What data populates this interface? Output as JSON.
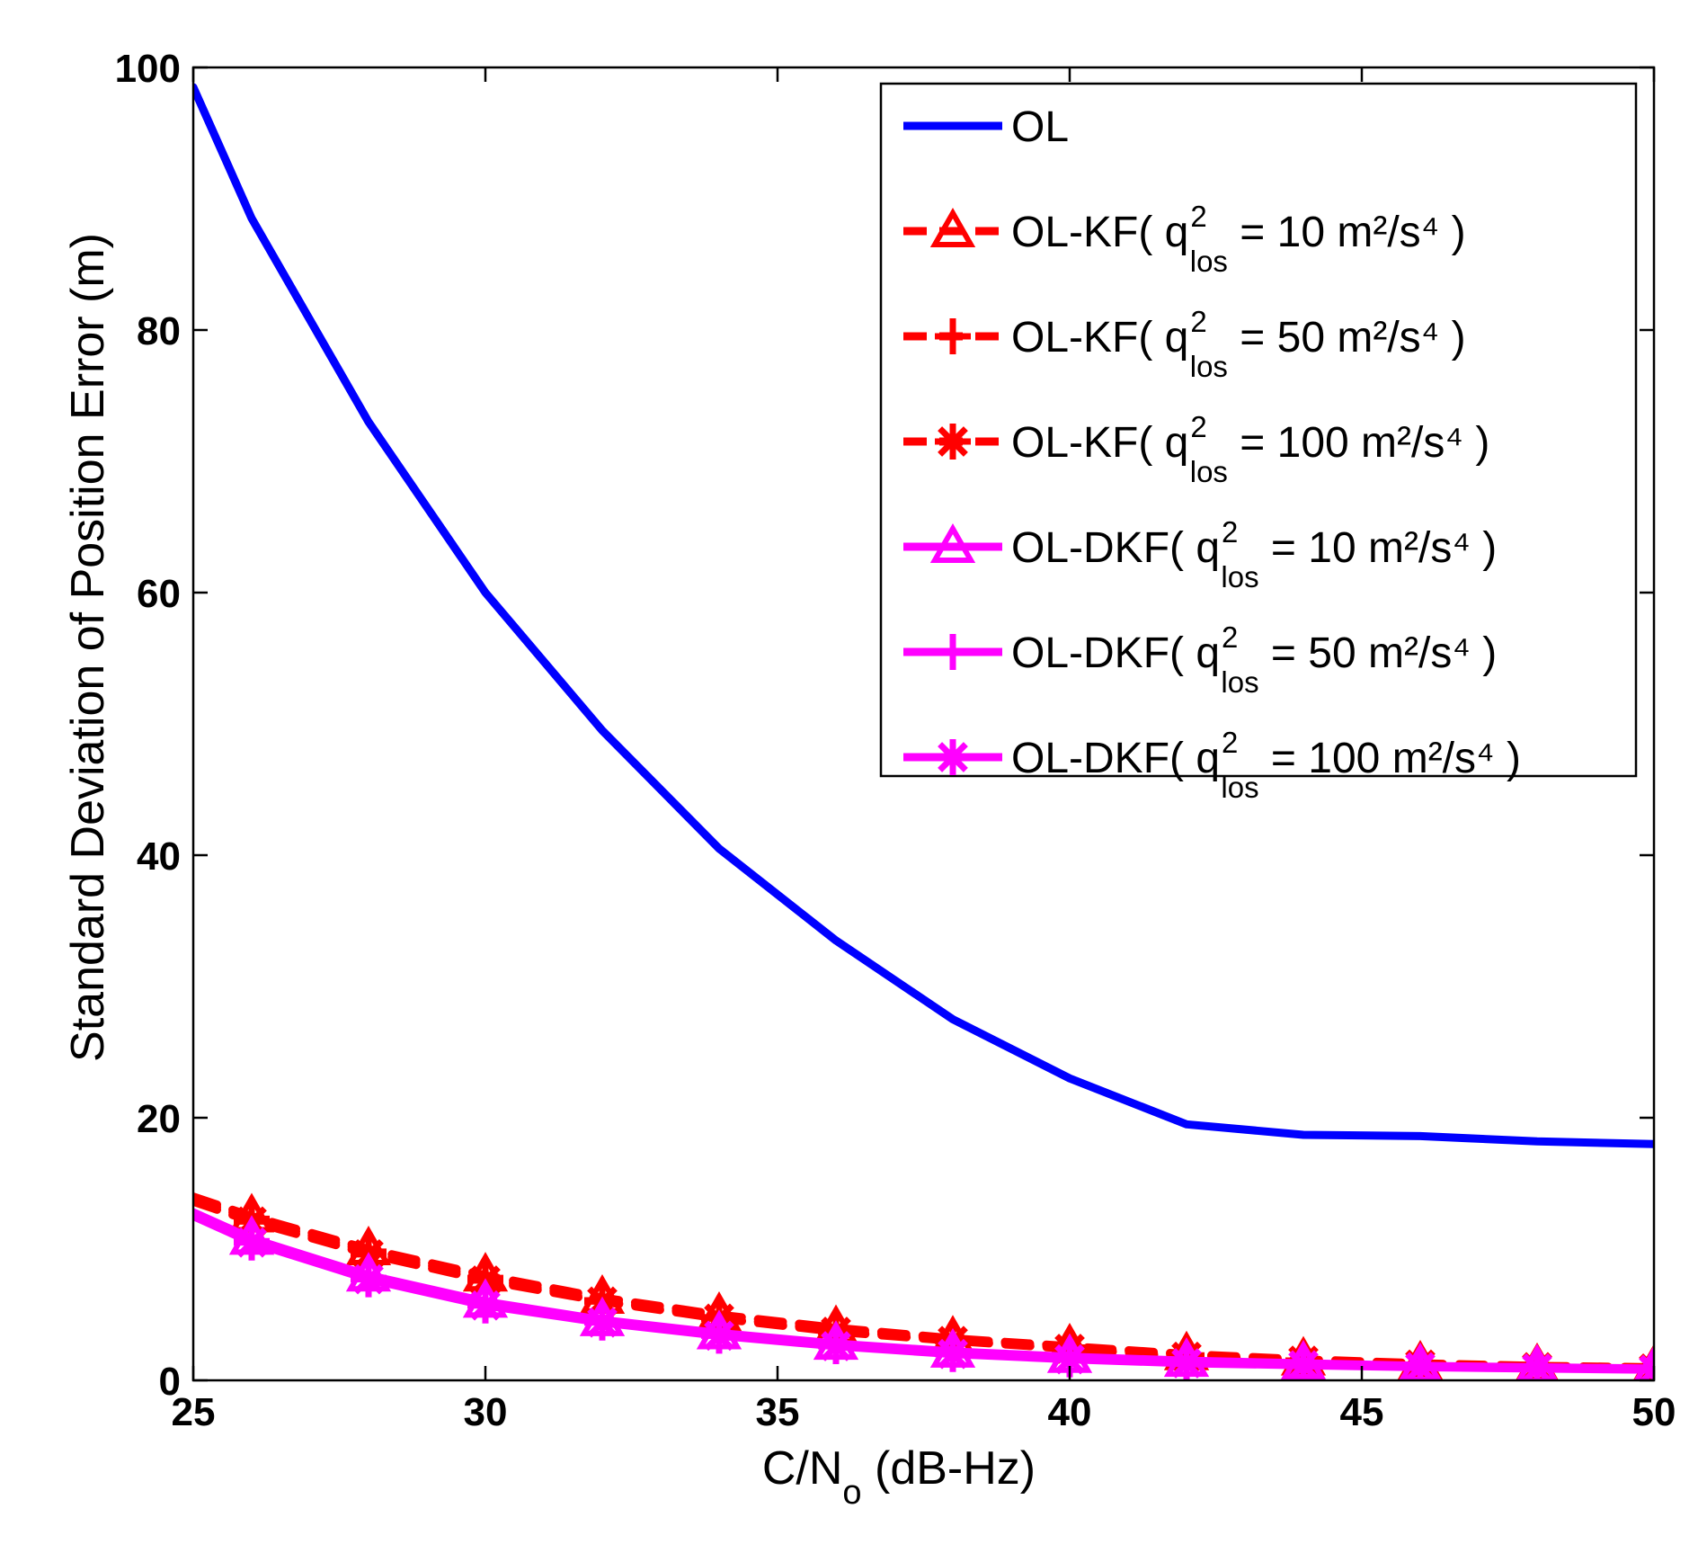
{
  "chart_data": {
    "type": "line",
    "title": "",
    "xlabel_main": "C/N",
    "xlabel_sub": "o",
    "xlabel_rest": " (dB-Hz)",
    "ylabel": "Standard Deviation of Position Error (m)",
    "xlim": [
      25,
      50
    ],
    "ylim": [
      0,
      100
    ],
    "xticks": [
      25,
      30,
      35,
      40,
      45,
      50
    ],
    "yticks": [
      0,
      20,
      40,
      60,
      80,
      100
    ],
    "xtick_labels": [
      "25",
      "30",
      "35",
      "40",
      "45",
      "50"
    ],
    "ytick_labels": [
      "0",
      "20",
      "40",
      "60",
      "80",
      "100"
    ],
    "grid": false,
    "legend_position": "top-right",
    "series": [
      {
        "name": "OL",
        "color": "#0000ff",
        "line_style": "solid",
        "marker": "none",
        "x": [
          25,
          26,
          28,
          30,
          32,
          34,
          36,
          38,
          40,
          42,
          44,
          46,
          48,
          50
        ],
        "y": [
          98.5,
          88.5,
          73,
          60,
          49.5,
          40.5,
          33.5,
          27.5,
          23,
          19.5,
          18.7,
          18.6,
          18.2,
          18
        ]
      },
      {
        "name": "OL-KF( q_los^2 = 10 m^2/s^4 )",
        "color": "#ff0000",
        "line_style": "dashed",
        "marker": "triangle",
        "x": [
          25,
          26,
          28,
          30,
          32,
          34,
          36,
          38,
          40,
          42,
          44,
          46,
          48,
          50
        ],
        "y": [
          14,
          12.5,
          10,
          8,
          6.3,
          5,
          4,
          3.2,
          2.6,
          2,
          1.6,
          1.3,
          1.1,
          1
        ]
      },
      {
        "name": "OL-KF( q_los^2 = 50 m^2/s^4 )",
        "color": "#ff0000",
        "line_style": "dashed",
        "marker": "plus",
        "x": [
          25,
          26,
          28,
          30,
          32,
          34,
          36,
          38,
          40,
          42,
          44,
          46,
          48,
          50
        ],
        "y": [
          13.8,
          12.3,
          9.8,
          7.8,
          6.1,
          4.8,
          3.8,
          3.1,
          2.5,
          1.9,
          1.5,
          1.2,
          1.05,
          0.9
        ]
      },
      {
        "name": "OL-KF( q_los^2 = 100 m^2/s^4 )",
        "color": "#ff0000",
        "line_style": "dashed",
        "marker": "star",
        "x": [
          25,
          26,
          28,
          30,
          32,
          34,
          36,
          38,
          40,
          42,
          44,
          46,
          48,
          50
        ],
        "y": [
          13.6,
          12.1,
          9.6,
          7.6,
          6,
          4.7,
          3.7,
          3,
          2.4,
          1.8,
          1.5,
          1.2,
          1,
          0.9
        ]
      },
      {
        "name": "OL-DKF( q_los^2 = 10 m^2/s^4 )",
        "color": "#ff00ff",
        "line_style": "solid",
        "marker": "triangle",
        "x": [
          25,
          26,
          28,
          30,
          32,
          34,
          36,
          38,
          40,
          42,
          44,
          46,
          48,
          50
        ],
        "y": [
          12.8,
          10.8,
          8,
          6,
          4.6,
          3.6,
          2.8,
          2.2,
          1.8,
          1.5,
          1.3,
          1.1,
          1,
          0.9
        ]
      },
      {
        "name": "OL-DKF( q_los^2 = 50 m^2/s^4 )",
        "color": "#ff00ff",
        "line_style": "solid",
        "marker": "plus",
        "x": [
          25,
          26,
          28,
          30,
          32,
          34,
          36,
          38,
          40,
          42,
          44,
          46,
          48,
          50
        ],
        "y": [
          12.6,
          10.6,
          7.8,
          5.8,
          4.5,
          3.5,
          2.7,
          2.1,
          1.7,
          1.4,
          1.2,
          1.05,
          0.95,
          0.85
        ]
      },
      {
        "name": "OL-DKF( q_los^2 = 100 m^2/s^4 )",
        "color": "#ff00ff",
        "line_style": "solid",
        "marker": "star",
        "x": [
          25,
          26,
          28,
          30,
          32,
          34,
          36,
          38,
          40,
          42,
          44,
          46,
          48,
          50
        ],
        "y": [
          12.5,
          10.5,
          7.7,
          5.7,
          4.4,
          3.4,
          2.6,
          2,
          1.6,
          1.3,
          1.15,
          1,
          0.9,
          0.8
        ]
      }
    ],
    "legend": [
      {
        "prefix": "OL",
        "sup": "",
        "sub": "",
        "suffix": ""
      },
      {
        "prefix": "OL-KF( q",
        "sup": "2",
        "sub": "los",
        "suffix": " = 10 m²/s⁴ )"
      },
      {
        "prefix": "OL-KF( q",
        "sup": "2",
        "sub": "los",
        "suffix": " = 50 m²/s⁴ )"
      },
      {
        "prefix": "OL-KF( q",
        "sup": "2",
        "sub": "los",
        "suffix": " = 100 m²/s⁴ )"
      },
      {
        "prefix": "OL-DKF( q",
        "sup": "2",
        "sub": "los",
        "suffix": " = 10 m²/s⁴ )"
      },
      {
        "prefix": "OL-DKF( q",
        "sup": "2",
        "sub": "los",
        "suffix": " = 50 m²/s⁴ )"
      },
      {
        "prefix": "OL-DKF( q",
        "sup": "2",
        "sub": "los",
        "suffix": " = 100 m²/s⁴ )"
      }
    ]
  }
}
